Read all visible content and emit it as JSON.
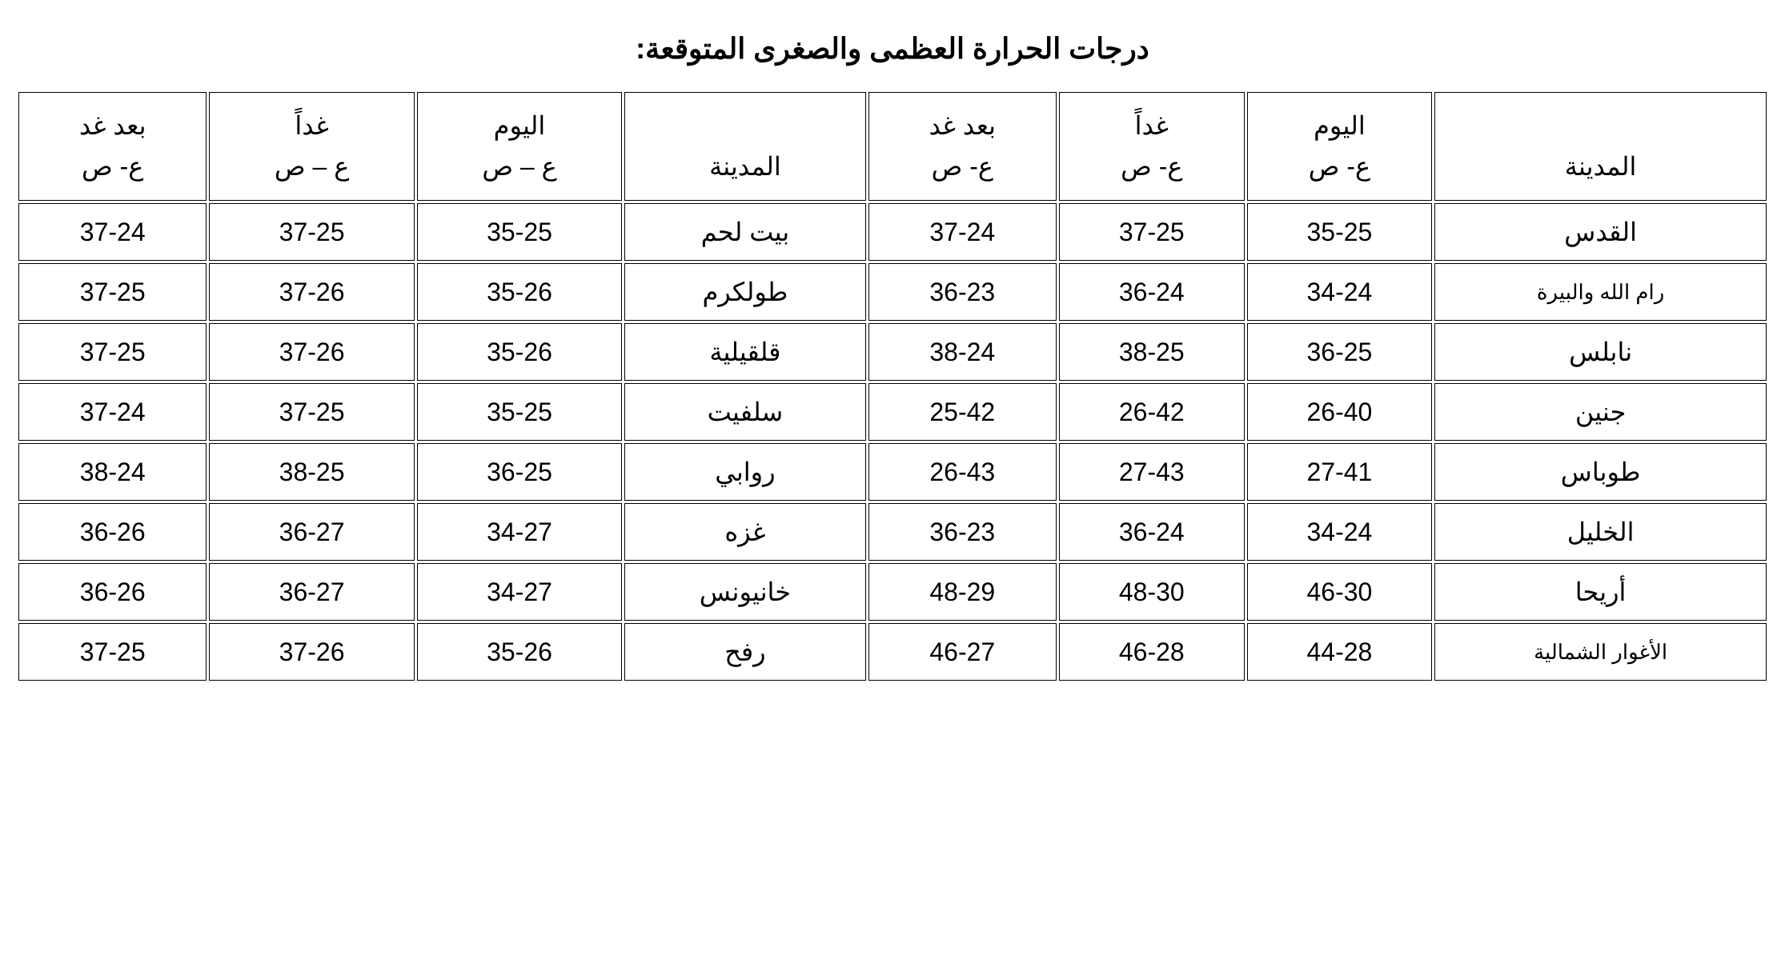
{
  "title": "درجات الحرارة العظمى والصغرى المتوقعة:",
  "table": {
    "columns": {
      "city": "المدينة",
      "today": "اليوم",
      "tomorrow": "غداً",
      "after_tomorrow": "بعد غد",
      "subheader": "ع- ص",
      "subheader_alt": "ع – ص"
    },
    "rows": [
      {
        "city_right": "القدس",
        "today_right": "35-25",
        "tomorrow_right": "37-25",
        "after_right": "37-24",
        "city_left": "بيت لحم",
        "today_left": "35-25",
        "tomorrow_left": "37-25",
        "after_left": "37-24"
      },
      {
        "city_right": "رام الله والبيرة",
        "today_right": "34-24",
        "tomorrow_right": "36-24",
        "after_right": "36-23",
        "city_left": "طولكرم",
        "today_left": "35-26",
        "tomorrow_left": "37-26",
        "after_left": "37-25"
      },
      {
        "city_right": "نابلس",
        "today_right": "36-25",
        "tomorrow_right": "38-25",
        "after_right": "38-24",
        "city_left": "قلقيلية",
        "today_left": "35-26",
        "tomorrow_left": "37-26",
        "after_left": "37-25"
      },
      {
        "city_right": "جنين",
        "today_right": "26-40",
        "tomorrow_right": "26-42",
        "after_right": "25-42",
        "city_left": "سلفيت",
        "today_left": "35-25",
        "tomorrow_left": "37-25",
        "after_left": "37-24"
      },
      {
        "city_right": "طوباس",
        "today_right": "27-41",
        "tomorrow_right": "27-43",
        "after_right": "26-43",
        "city_left": "روابي",
        "today_left": "36-25",
        "tomorrow_left": "38-25",
        "after_left": "38-24"
      },
      {
        "city_right": "الخليل",
        "today_right": "34-24",
        "tomorrow_right": "36-24",
        "after_right": "36-23",
        "city_left": "غزه",
        "today_left": "34-27",
        "tomorrow_left": "36-27",
        "after_left": "36-26"
      },
      {
        "city_right": "أريحا",
        "today_right": "46-30",
        "tomorrow_right": "48-30",
        "after_right": "48-29",
        "city_left": "خانيونس",
        "today_left": "34-27",
        "tomorrow_left": "36-27",
        "after_left": "36-26"
      },
      {
        "city_right": "الأغوار الشمالية",
        "today_right": "44-28",
        "tomorrow_right": "46-28",
        "after_right": "46-27",
        "city_left": "رفح",
        "today_left": "35-26",
        "tomorrow_left": "37-26",
        "after_left": "37-25"
      }
    ],
    "styling": {
      "border_color": "#000000",
      "background_color": "#ffffff",
      "text_color": "#000000",
      "title_fontsize": 36,
      "cell_fontsize": 32,
      "small_city_fontsize": 26
    }
  }
}
